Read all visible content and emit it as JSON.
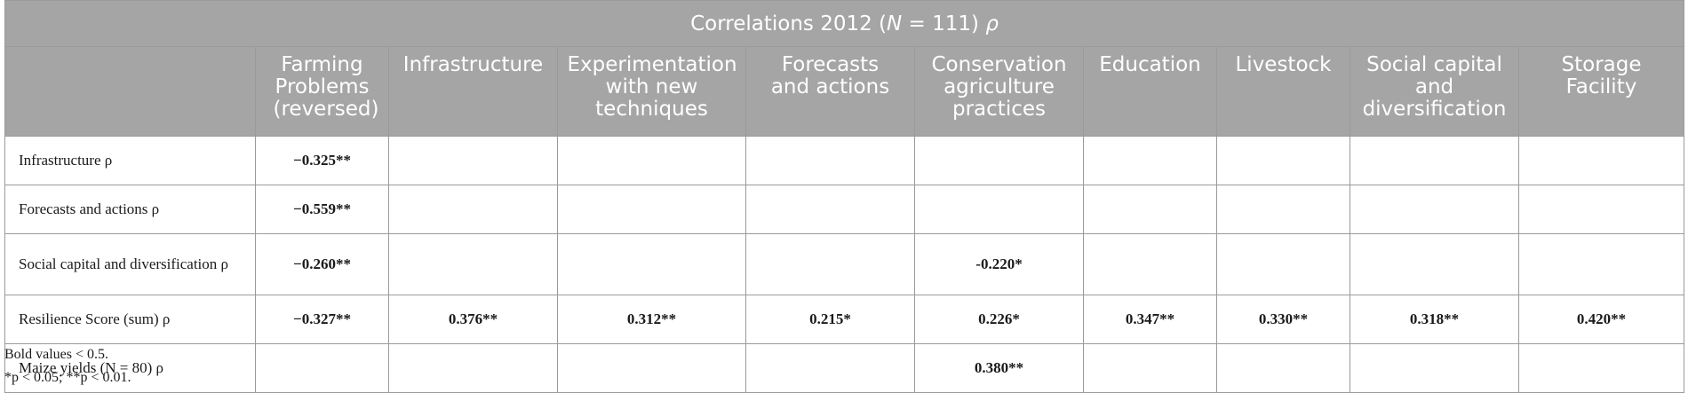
{
  "table": {
    "title_prefix": "Correlations 2012 (",
    "title_n": "N",
    "title_mid": " = 111) ",
    "title_rho": "ρ",
    "columns": [
      "Farming Problems (reversed)",
      "Infrastructure",
      "Experimentation with new techniques",
      "Forecasts and actions",
      "Conservation agriculture practices",
      "Education",
      "Livestock",
      "Social capital and diversification",
      "Storage Facility"
    ],
    "rows": [
      {
        "label": "Infrastructure ρ",
        "cells": [
          "−0.325**",
          "",
          "",
          "",
          "",
          "",
          "",
          "",
          ""
        ]
      },
      {
        "label": "Forecasts and actions ρ",
        "cells": [
          "−0.559**",
          "",
          "",
          "",
          "",
          "",
          "",
          "",
          ""
        ]
      },
      {
        "label": "Social capital and diversification ρ",
        "cells": [
          "−0.260**",
          "",
          "",
          "",
          "-0.220*",
          "",
          "",
          "",
          ""
        ]
      },
      {
        "label": "Resilience Score (sum) ρ",
        "cells": [
          "−0.327**",
          "0.376**",
          "0.312**",
          "0.215*",
          "0.226*",
          "0.347**",
          "0.330**",
          "0.318**",
          "0.420**"
        ]
      },
      {
        "label": "Maize yields (N = 80) ρ",
        "cells": [
          "",
          "",
          "",
          "",
          "0.380**",
          "",
          "",
          "",
          ""
        ]
      }
    ]
  },
  "footnotes": {
    "line1": "Bold values < 0.5.",
    "line2": "*p < 0.05; **p < 0.01."
  }
}
